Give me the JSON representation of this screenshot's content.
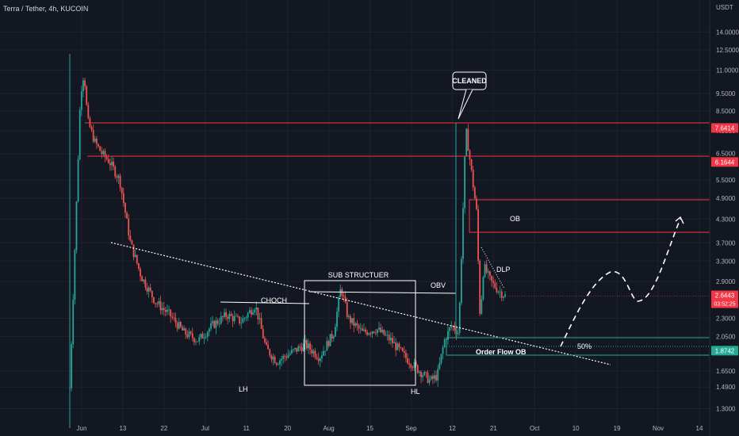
{
  "header": {
    "title": "Terra / Tether, 4h, KUCOIN"
  },
  "chart_data": {
    "type": "candlestick",
    "currency_label": "USDT",
    "y_scale": "log",
    "ylim": [
      1.15,
      15.5
    ],
    "y_ticks": [
      "14.0000",
      "12.5000",
      "11.0000",
      "9.5000",
      "8.5000",
      "7.5000",
      "6.5000",
      "5.5000",
      "4.9000",
      "4.3000",
      "3.7000",
      "3.3000",
      "2.9000",
      "2.3000",
      "2.0500",
      "1.6500",
      "1.4900",
      "1.3000"
    ],
    "x_ticks": [
      "Jun",
      "13",
      "22",
      "Jul",
      "11",
      "20",
      "Aug",
      "15",
      "Sep",
      "12",
      "21",
      "Oct",
      "10",
      "19",
      "Nov",
      "14"
    ],
    "grid": true,
    "price_path": [
      [
        0,
        1.48
      ],
      [
        3,
        9.5
      ],
      [
        4,
        10.9
      ],
      [
        5,
        8.0
      ],
      [
        7,
        7.0
      ],
      [
        9,
        6.5
      ],
      [
        11,
        6.2
      ],
      [
        14,
        5.5
      ],
      [
        17,
        3.7
      ],
      [
        20,
        3.0
      ],
      [
        24,
        2.55
      ],
      [
        28,
        2.35
      ],
      [
        32,
        2.1
      ],
      [
        36,
        2.0
      ],
      [
        40,
        2.2
      ],
      [
        44,
        2.35
      ],
      [
        48,
        2.25
      ],
      [
        52,
        2.5
      ],
      [
        55,
        1.9
      ],
      [
        58,
        1.75
      ],
      [
        62,
        1.85
      ],
      [
        66,
        1.95
      ],
      [
        70,
        1.8
      ],
      [
        74,
        2.1
      ],
      [
        76,
        2.8
      ],
      [
        78,
        2.3
      ],
      [
        82,
        2.1
      ],
      [
        86,
        2.15
      ],
      [
        90,
        2.0
      ],
      [
        94,
        1.8
      ],
      [
        98,
        1.65
      ],
      [
        101,
        1.55
      ],
      [
        103,
        1.6
      ],
      [
        105,
        2.0
      ],
      [
        107,
        2.2
      ],
      [
        109,
        2.1
      ],
      [
        111,
        7.6
      ],
      [
        112,
        6.4
      ],
      [
        114,
        4.5
      ],
      [
        115,
        2.3
      ],
      [
        116,
        3.2
      ],
      [
        118,
        2.9
      ],
      [
        120,
        2.75
      ],
      [
        122,
        2.65
      ]
    ],
    "levels": [
      {
        "name": "level-7-6414",
        "value": 7.6414,
        "label": "7.6414",
        "color": "#f23645"
      },
      {
        "name": "level-6-1644",
        "value": 6.1644,
        "label": "6.1644",
        "color": "#f23645"
      },
      {
        "name": "level-1-8742",
        "value": 1.8742,
        "label": "1.8742",
        "color": "#22ab94"
      }
    ],
    "last_price": {
      "value": 2.6443,
      "label": "2.6443",
      "countdown": "03:52:25",
      "color": "#f23645"
    },
    "annotations": {
      "cleaned": "CLEANED",
      "ob": "OB",
      "dlp": "DLP",
      "obv": "OBV",
      "sub_structure": "SUB STRUCTUER",
      "choch": "CHOCH",
      "lh": "LH",
      "hl": "HL",
      "fifty_pct": "50%",
      "order_flow_ob": "Order Flow OB"
    },
    "colors": {
      "up": "#26a69a",
      "down": "#ef5350",
      "zone_red": "#f23645",
      "zone_green": "#22ab94",
      "background": "#131722"
    }
  }
}
